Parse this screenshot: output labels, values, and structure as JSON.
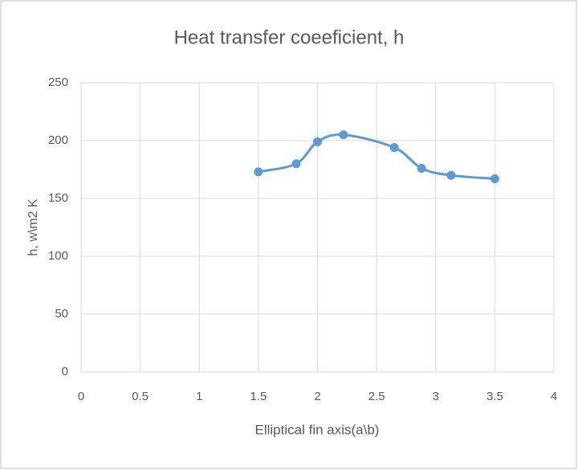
{
  "chart_data": {
    "type": "scatter",
    "title": "Heat transfer coeeficient, h",
    "x_label": "Elliptical fin axis(a\\b)",
    "y_label": "h, w\\m2 K",
    "series": [
      {
        "color": "#5b9bd5",
        "x": [
          1.5,
          1.82,
          2.0,
          2.22,
          2.65,
          2.88,
          3.13,
          3.5
        ],
        "values": [
          173,
          180,
          199,
          205,
          194,
          176,
          170,
          167
        ]
      }
    ],
    "smooth": true,
    "xlim": [
      0,
      4
    ],
    "xticks": [
      0,
      0.5,
      1,
      1.5,
      2,
      2.5,
      3,
      3.5,
      4
    ],
    "ylim": [
      0,
      250
    ],
    "yticks": [
      0,
      50,
      100,
      150,
      200,
      250
    ],
    "grid": true
  }
}
